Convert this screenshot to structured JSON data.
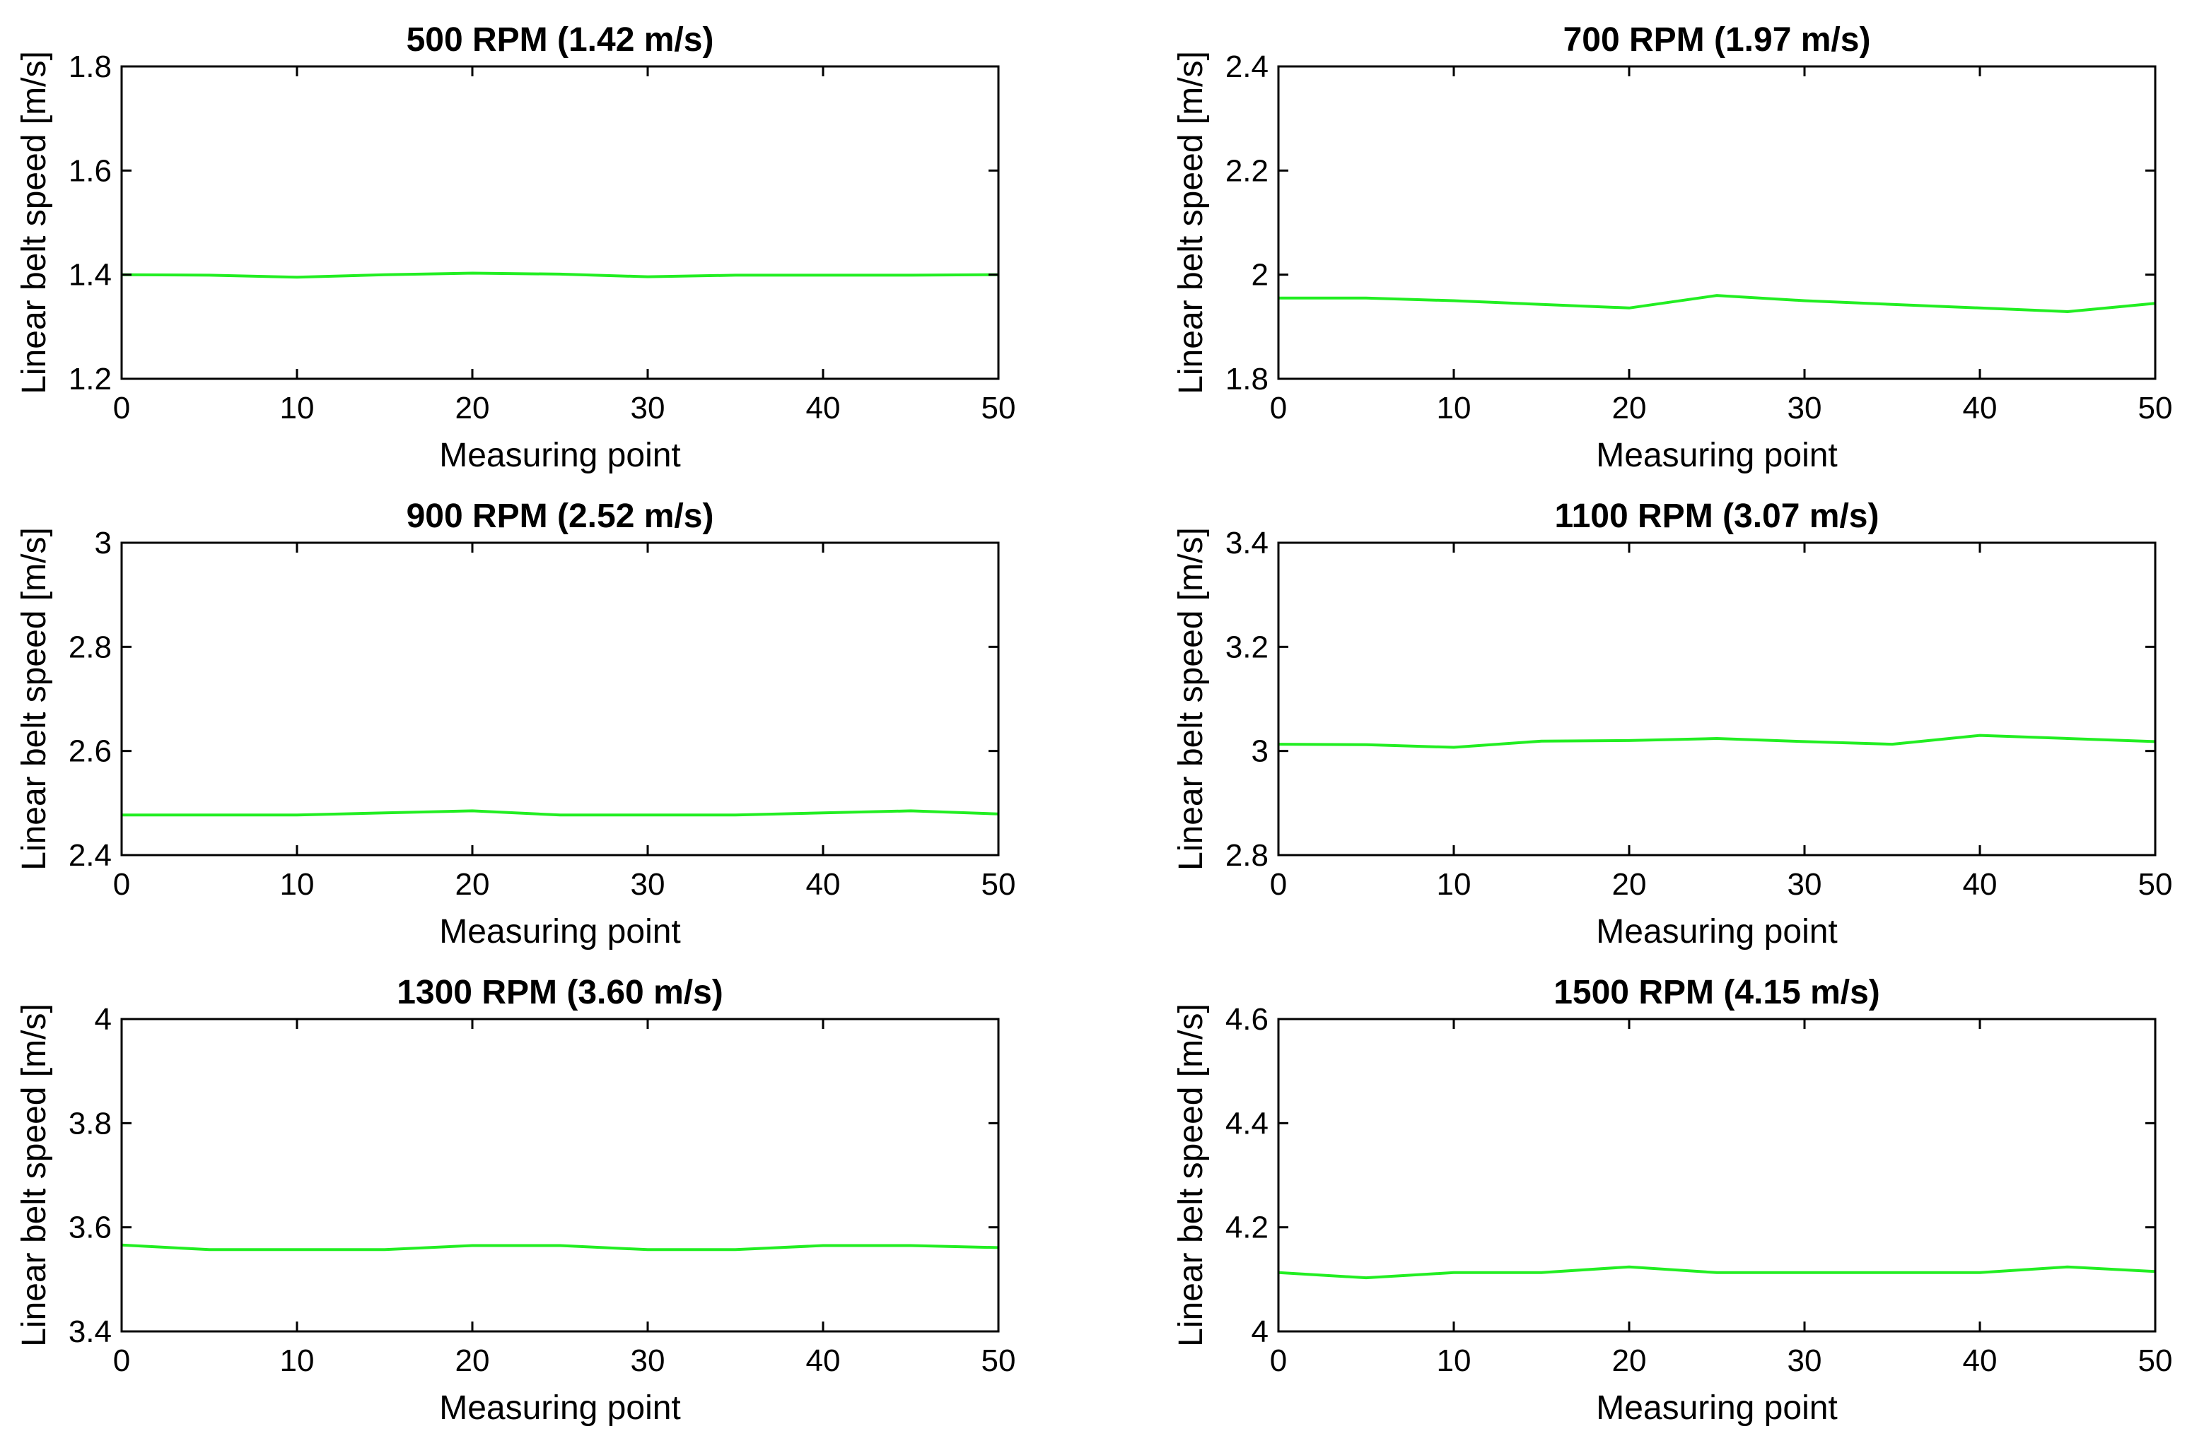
{
  "chart_data": [
    {
      "type": "line",
      "title": "500 RPM (1.42 m/s)",
      "xlabel": "Measuring point",
      "ylabel": "Linear belt speed [m/s]",
      "xlim": [
        0,
        50
      ],
      "ylim": [
        1.2,
        1.8
      ],
      "xticks": [
        0,
        10,
        20,
        30,
        40,
        50
      ],
      "yticks": [
        1.2,
        1.4,
        1.6,
        1.8
      ],
      "ytick_labels": [
        "1.2",
        "1.4",
        "1.6",
        "1.8"
      ],
      "color": "#22ee22",
      "x": [
        0,
        5,
        10,
        15,
        20,
        25,
        30,
        35,
        40,
        45,
        50
      ],
      "y": [
        1.4,
        1.399,
        1.395,
        1.4,
        1.403,
        1.401,
        1.396,
        1.399,
        1.399,
        1.399,
        1.4
      ]
    },
    {
      "type": "line",
      "title": "700 RPM (1.97 m/s)",
      "xlabel": "Measuring point",
      "ylabel": "Linear belt speed [m/s]",
      "xlim": [
        0,
        50
      ],
      "ylim": [
        1.8,
        2.4
      ],
      "xticks": [
        0,
        10,
        20,
        30,
        40,
        50
      ],
      "yticks": [
        1.8,
        2.0,
        2.2,
        2.4
      ],
      "ytick_labels": [
        "1.8",
        "2",
        "2.2",
        "2.4"
      ],
      "color": "#22ee22",
      "x": [
        0,
        5,
        10,
        15,
        20,
        25,
        30,
        35,
        40,
        45,
        50
      ],
      "y": [
        1.955,
        1.955,
        1.95,
        1.943,
        1.936,
        1.96,
        1.95,
        1.943,
        1.936,
        1.929,
        1.945
      ]
    },
    {
      "type": "line",
      "title": "900 RPM (2.52 m/s)",
      "xlabel": "Measuring point",
      "ylabel": "Linear belt speed [m/s]",
      "xlim": [
        0,
        50
      ],
      "ylim": [
        2.4,
        3.0
      ],
      "xticks": [
        0,
        10,
        20,
        30,
        40,
        50
      ],
      "yticks": [
        2.4,
        2.6,
        2.8,
        3.0
      ],
      "ytick_labels": [
        "2.4",
        "2.6",
        "2.8",
        "3"
      ],
      "color": "#22ee22",
      "x": [
        0,
        5,
        10,
        15,
        20,
        25,
        30,
        35,
        40,
        45,
        50
      ],
      "y": [
        2.477,
        2.477,
        2.477,
        2.481,
        2.485,
        2.477,
        2.477,
        2.477,
        2.481,
        2.485,
        2.479
      ]
    },
    {
      "type": "line",
      "title": "1100 RPM (3.07 m/s)",
      "xlabel": "Measuring point",
      "ylabel": "Linear belt speed [m/s]",
      "xlim": [
        0,
        50
      ],
      "ylim": [
        2.8,
        3.4
      ],
      "xticks": [
        0,
        10,
        20,
        30,
        40,
        50
      ],
      "yticks": [
        2.8,
        3.0,
        3.2,
        3.4
      ],
      "ytick_labels": [
        "2.8",
        "3",
        "3.2",
        "3.4"
      ],
      "color": "#22ee22",
      "x": [
        0,
        5,
        10,
        15,
        20,
        25,
        30,
        35,
        40,
        45,
        50
      ],
      "y": [
        3.013,
        3.012,
        3.007,
        3.019,
        3.02,
        3.024,
        3.018,
        3.013,
        3.03,
        3.024,
        3.018
      ]
    },
    {
      "type": "line",
      "title": "1300 RPM (3.60 m/s)",
      "xlabel": "Measuring point",
      "ylabel": "Linear belt speed [m/s]",
      "xlim": [
        0,
        50
      ],
      "ylim": [
        3.4,
        4.0
      ],
      "xticks": [
        0,
        10,
        20,
        30,
        40,
        50
      ],
      "yticks": [
        3.4,
        3.6,
        3.8,
        4.0
      ],
      "ytick_labels": [
        "3.4",
        "3.6",
        "3.8",
        "4"
      ],
      "color": "#22ee22",
      "x": [
        0,
        5,
        10,
        15,
        20,
        25,
        30,
        35,
        40,
        45,
        50
      ],
      "y": [
        3.566,
        3.557,
        3.557,
        3.557,
        3.565,
        3.565,
        3.557,
        3.557,
        3.565,
        3.565,
        3.561
      ]
    },
    {
      "type": "line",
      "title": "1500 RPM (4.15 m/s)",
      "xlabel": "Measuring point",
      "ylabel": "Linear belt speed [m/s]",
      "xlim": [
        0,
        50
      ],
      "ylim": [
        4.0,
        4.6
      ],
      "xticks": [
        0,
        10,
        20,
        30,
        40,
        50
      ],
      "yticks": [
        4.0,
        4.2,
        4.4,
        4.6
      ],
      "ytick_labels": [
        "4",
        "4.2",
        "4.4",
        "4.6"
      ],
      "color": "#22ee22",
      "x": [
        0,
        5,
        10,
        15,
        20,
        25,
        30,
        35,
        40,
        45,
        50
      ],
      "y": [
        4.113,
        4.103,
        4.113,
        4.113,
        4.124,
        4.113,
        4.113,
        4.113,
        4.113,
        4.124,
        4.115
      ]
    }
  ]
}
